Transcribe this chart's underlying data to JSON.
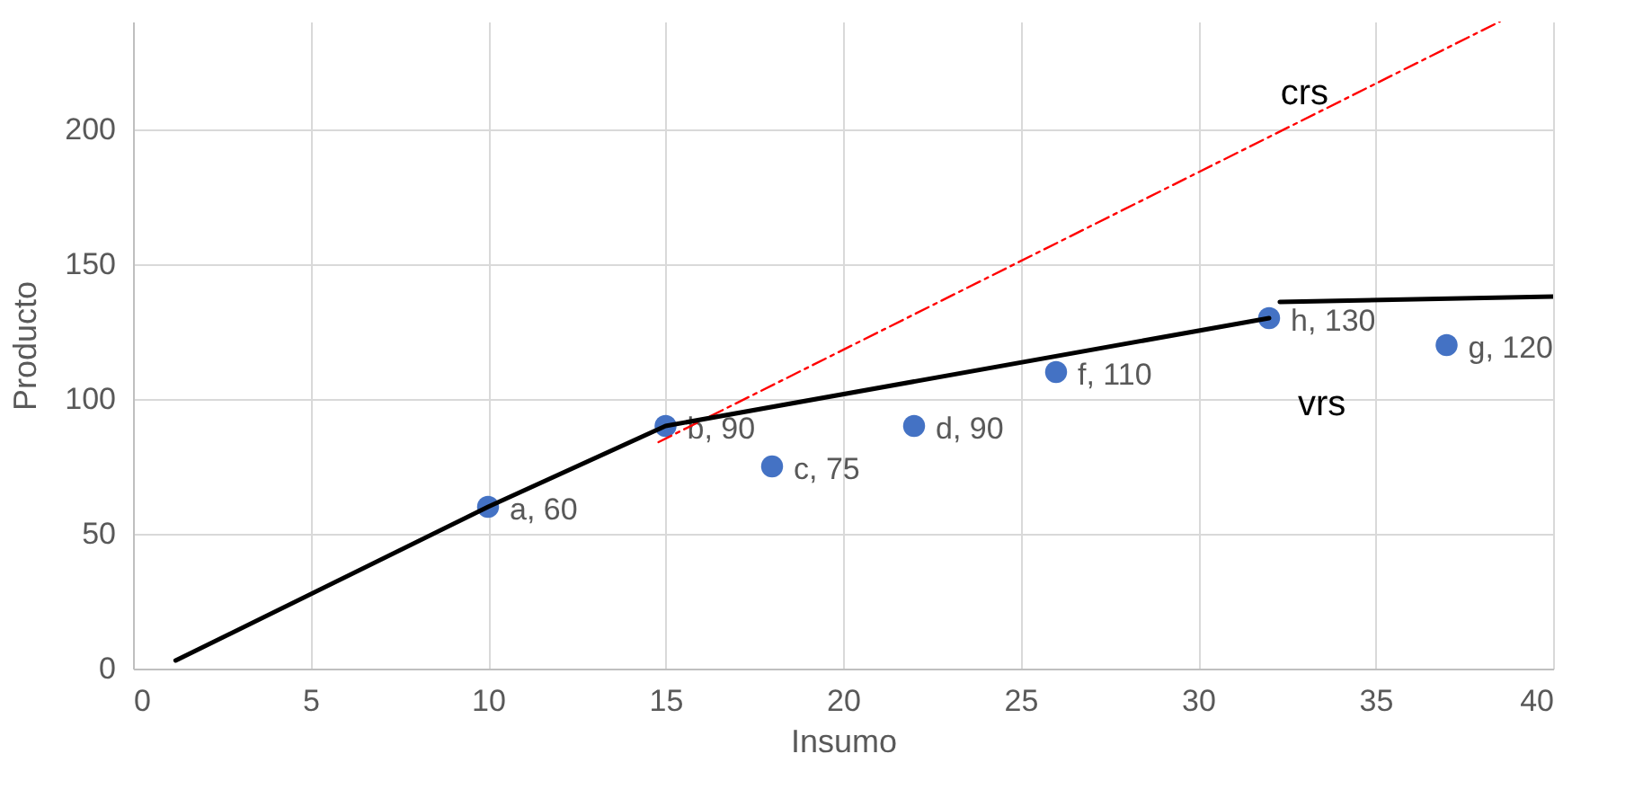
{
  "chart_data": {
    "type": "scatter",
    "xlabel": "Insumo",
    "ylabel": "Producto",
    "xlim": [
      0,
      40
    ],
    "ylim": [
      0,
      240
    ],
    "xticks": [
      0,
      5,
      10,
      15,
      20,
      25,
      30,
      35,
      40
    ],
    "yticks": [
      0,
      50,
      100,
      150,
      200
    ],
    "grid": true,
    "legend": false,
    "x": [
      10,
      15,
      18,
      22,
      26,
      32,
      37
    ],
    "series": [
      {
        "type": "scatter",
        "marker": "circle",
        "color": "#4472c4",
        "values": [
          60,
          90,
          75,
          90,
          110,
          130,
          120
        ],
        "value_labels": [
          "a, 60",
          "b, 90",
          "c, 75",
          "d, 90",
          "f, 110",
          "h, 130",
          "g, 120"
        ]
      },
      {
        "type": "line",
        "name": "crs",
        "color": "#ff0000",
        "line_style": "dashed",
        "marker": "none",
        "x": [
          14.8,
          38.5
        ],
        "values": [
          84,
          240
        ]
      },
      {
        "type": "line",
        "name": "vrs",
        "color": "#000000",
        "line_style": "solid",
        "marker": "none",
        "x": [
          1.2,
          10,
          15,
          32
        ],
        "values": [
          3,
          60,
          90,
          130
        ]
      },
      {
        "type": "line",
        "color": "#000000",
        "line_style": "solid",
        "marker": "none",
        "x": [
          32.3,
          40
        ],
        "values": [
          136,
          138
        ]
      }
    ]
  }
}
